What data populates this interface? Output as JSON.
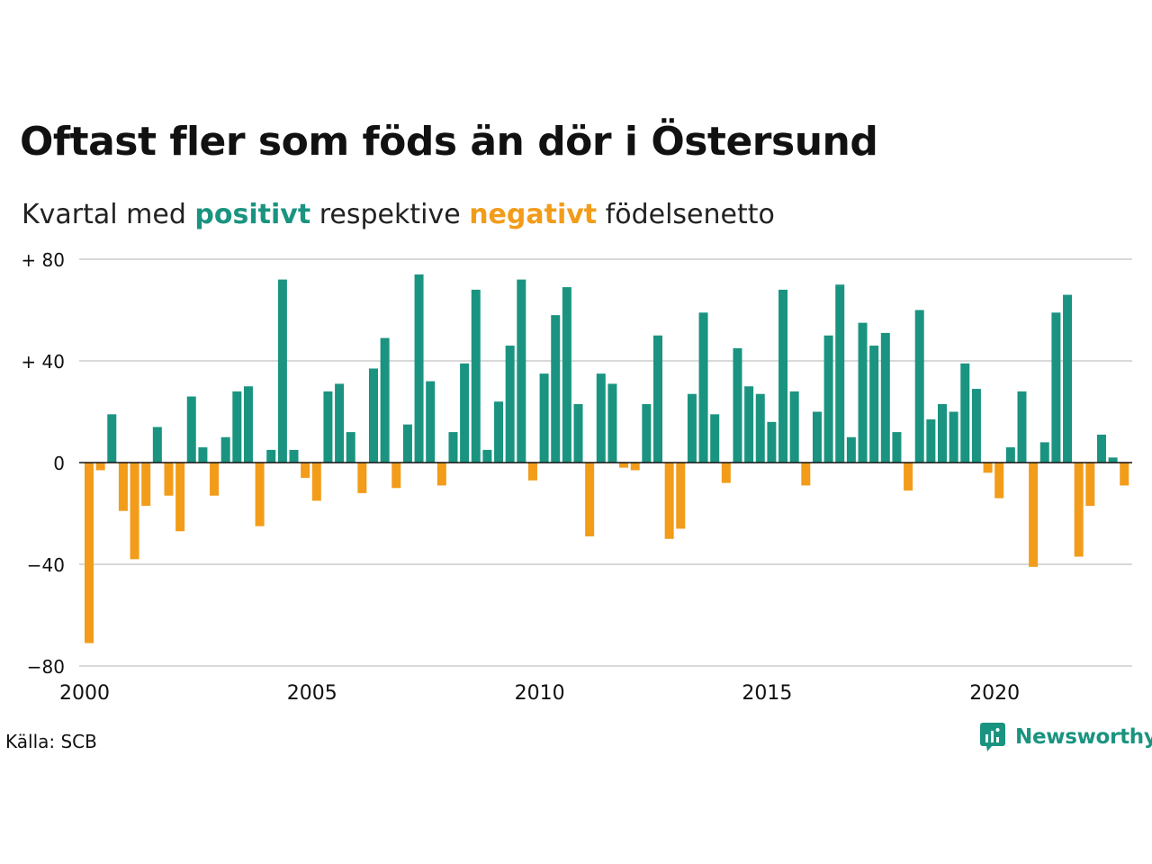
{
  "header": {
    "title": "Oftast fler som föds än dör i Östersund",
    "subtitle_prefix": "Kvartal med ",
    "subtitle_positive": "positivt",
    "subtitle_middle": " respektive ",
    "subtitle_negative": "negativt",
    "subtitle_suffix": " födelsenetto"
  },
  "footer": {
    "source": "Källa: SCB",
    "brand": "Newsworthy",
    "brand_icon": "newsworthy-logo-icon"
  },
  "colors": {
    "positive": "#1a9480",
    "negative": "#f29c1a",
    "grid": "#d9d9d9",
    "zero_line": "#111111"
  },
  "chart_data": {
    "type": "bar",
    "title": "Oftast fler som föds än dör i Östersund",
    "subtitle": "Kvartal med positivt respektive negativt födelsenetto",
    "xlabel": "",
    "ylabel": "",
    "ylim": [
      -80,
      80
    ],
    "yticks": [
      80,
      40,
      0,
      -40,
      -80
    ],
    "ytick_labels": [
      "+ 80",
      "+ 40",
      "0",
      "−40",
      "−80"
    ],
    "xticks": [
      2000,
      2005,
      2010,
      2015,
      2020
    ],
    "grid": true,
    "legend": "none (colors explained in subtitle)",
    "first_quarter": "2000 Q1",
    "values": [
      -71,
      -3,
      19,
      -19,
      -38,
      -17,
      14,
      -13,
      -27,
      26,
      6,
      -13,
      10,
      28,
      30,
      -25,
      5,
      72,
      5,
      -6,
      -15,
      28,
      31,
      12,
      -12,
      37,
      49,
      -10,
      15,
      74,
      32,
      -9,
      12,
      39,
      68,
      5,
      24,
      46,
      72,
      -7,
      35,
      58,
      69,
      23,
      -29,
      35,
      31,
      -2,
      -3,
      23,
      50,
      -30,
      -26,
      27,
      59,
      19,
      -8,
      45,
      30,
      27,
      16,
      68,
      28,
      -9,
      20,
      50,
      70,
      10,
      55,
      46,
      51,
      12,
      -11,
      60,
      17,
      23,
      20,
      39,
      29,
      -4,
      -14,
      6,
      28,
      -41,
      8,
      59,
      66,
      -37,
      -17,
      11,
      2,
      -9
    ]
  }
}
